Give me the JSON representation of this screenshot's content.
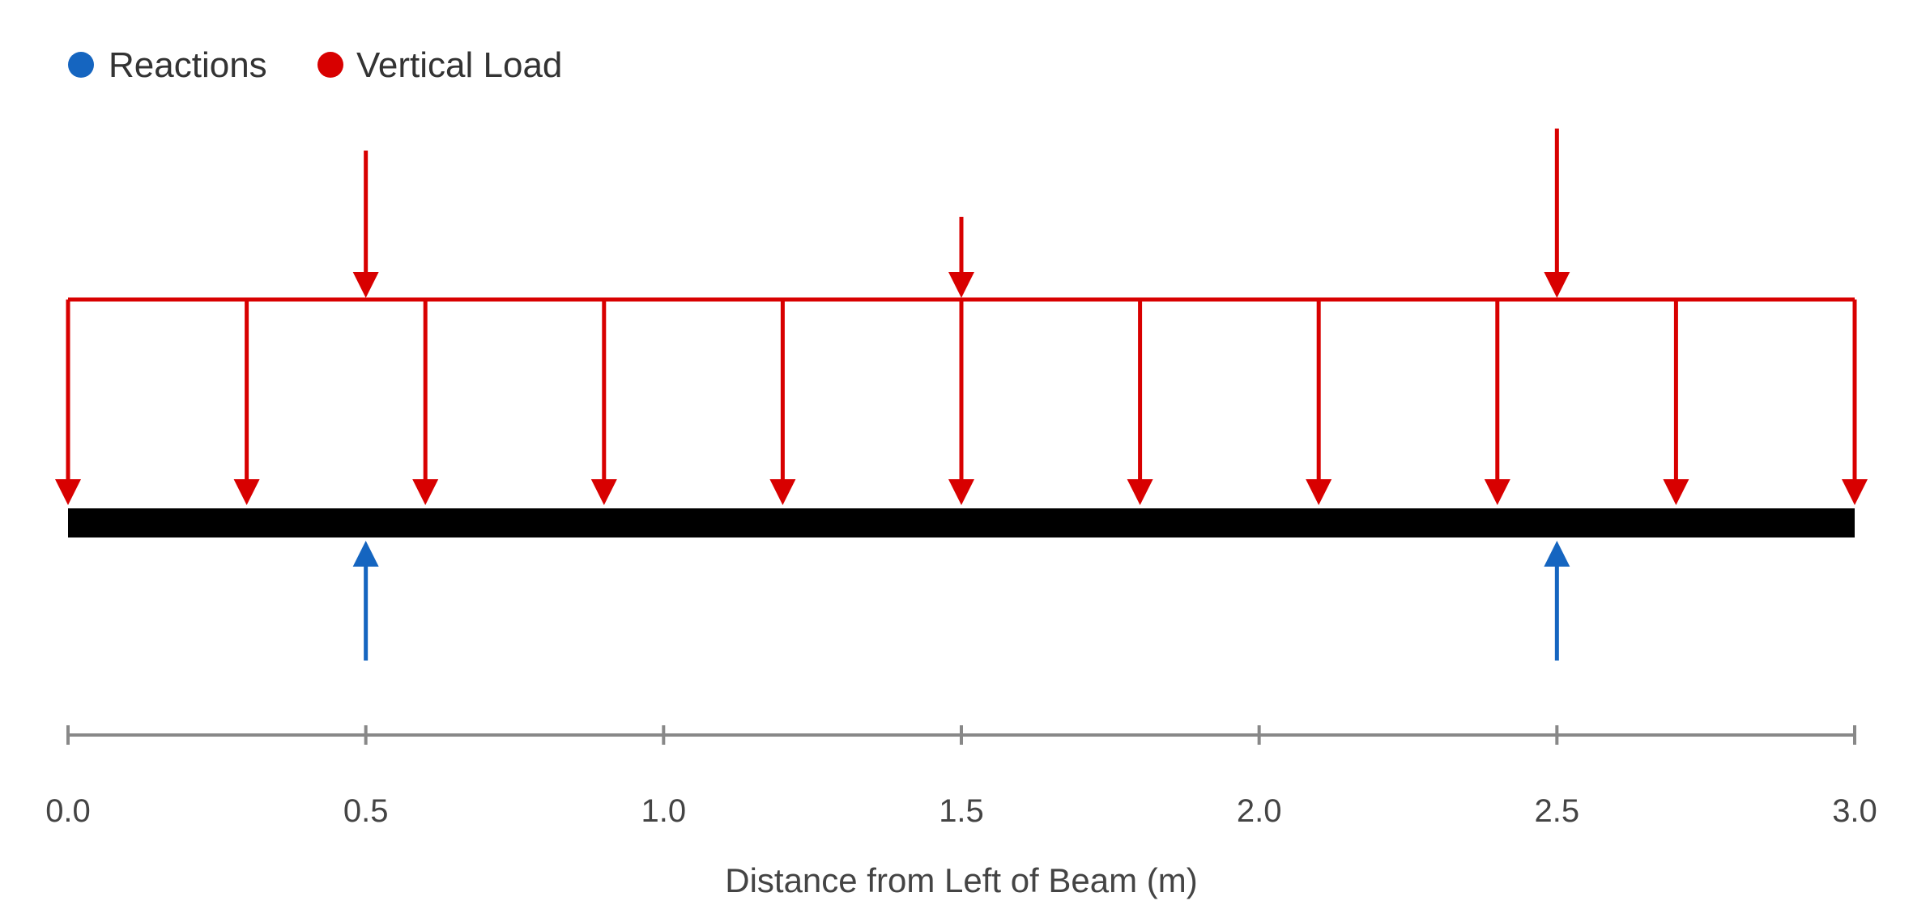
{
  "legend": {
    "items": [
      {
        "label": "Reactions",
        "color": "#1565c0"
      },
      {
        "label": "Vertical Load",
        "color": "#d80000"
      }
    ]
  },
  "axis": {
    "label": "Distance from Left of Beam (m)",
    "range": [
      0,
      3
    ],
    "ticks": [
      "0.0",
      "0.5",
      "1.0",
      "1.5",
      "2.0",
      "2.5",
      "3.0"
    ]
  },
  "beam": {
    "start": 0,
    "end": 3,
    "color": "#000000"
  },
  "distributed_load": {
    "start": 0,
    "end": 3,
    "arrow_positions": [
      0,
      0.3,
      0.6,
      0.9,
      1.2,
      1.5,
      1.8,
      2.1,
      2.4,
      2.7,
      3.0
    ],
    "color": "#d80000"
  },
  "point_loads": [
    {
      "x": 0.5,
      "relative_magnitude": 1.0
    },
    {
      "x": 1.5,
      "relative_magnitude": 0.55
    },
    {
      "x": 2.5,
      "relative_magnitude": 1.15
    }
  ],
  "reactions": [
    {
      "x": 0.5
    },
    {
      "x": 2.5
    }
  ]
}
